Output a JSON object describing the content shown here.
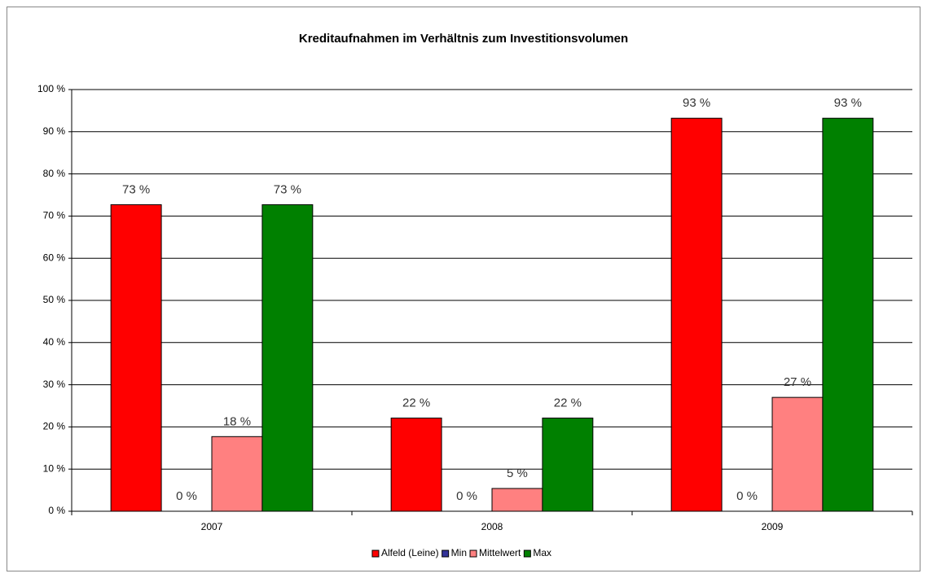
{
  "chart_data": {
    "type": "bar",
    "title": "Kreditaufnahmen im Verhältnis zum Investitionsvolumen",
    "categories": [
      "2007",
      "2008",
      "2009"
    ],
    "series": [
      {
        "name": "Alfeld (Leine)",
        "color": "#ff0000",
        "values": [
          72.7,
          22.1,
          93.2
        ],
        "value_labels": [
          "73 %",
          "22 %",
          "93 %"
        ]
      },
      {
        "name": "Min",
        "color": "#333399",
        "values": [
          0,
          0,
          0
        ],
        "value_labels": [
          "0 %",
          "0 %",
          "0 %"
        ]
      },
      {
        "name": "Mittelwert",
        "color": "#ff8080",
        "values": [
          17.7,
          5.4,
          27.0
        ],
        "value_labels": [
          "18 %",
          "5 %",
          "27 %"
        ]
      },
      {
        "name": "Max",
        "color": "#008000",
        "values": [
          72.7,
          22.1,
          93.2
        ],
        "value_labels": [
          "73 %",
          "22 %",
          "93 %"
        ]
      }
    ],
    "ylim": [
      0,
      100
    ],
    "yticks": [
      {
        "value": 0,
        "label": "0 %"
      },
      {
        "value": 10,
        "label": "10 %"
      },
      {
        "value": 20,
        "label": "20 %"
      },
      {
        "value": 30,
        "label": "30 %"
      },
      {
        "value": 40,
        "label": "40 %"
      },
      {
        "value": 50,
        "label": "50 %"
      },
      {
        "value": 60,
        "label": "60 %"
      },
      {
        "value": 70,
        "label": "70 %"
      },
      {
        "value": 80,
        "label": "80 %"
      },
      {
        "value": 90,
        "label": "90 %"
      },
      {
        "value": 100,
        "label": "100 %"
      }
    ],
    "grid": true,
    "legend": "bottom"
  }
}
